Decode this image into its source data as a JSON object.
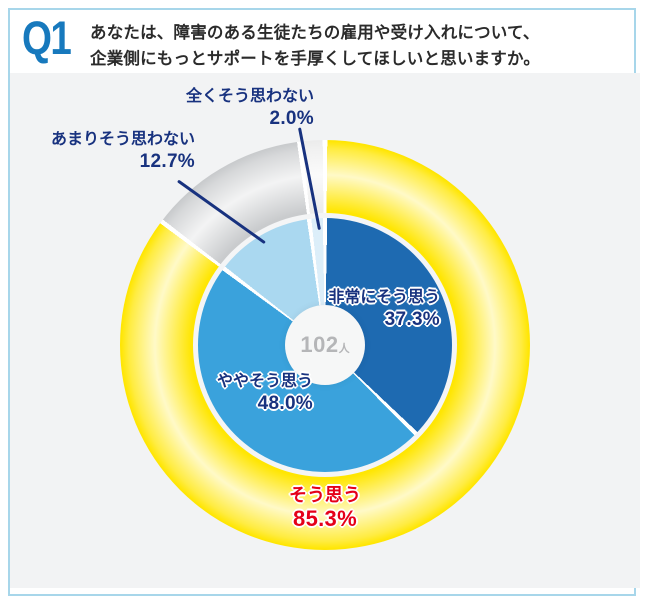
{
  "header": {
    "badge": "Q1",
    "question_line1": "あなたは、障害のある生徒たちの雇用や受け入れについて、",
    "question_line2": "企業側にもっとサポートを手厚くしてほしいと思いますか。"
  },
  "chart_data": {
    "type": "pie",
    "title": "あなたは、障害のある生徒たちの雇用や受け入れについて、企業側にもっとサポートを手厚くしてほしいと思いますか。",
    "sample_n": "102",
    "sample_unit": "人",
    "start_angle_deg": 0,
    "direction": "clockwise",
    "slices": [
      {
        "label": "非常にそう思う",
        "value": 37.3,
        "pct_text": "37.3%",
        "color": "#1e6ab1"
      },
      {
        "label": "ややそう思う",
        "value": 48.0,
        "pct_text": "48.0%",
        "color": "#3aa2dc"
      },
      {
        "label": "あまりそう思わない",
        "value": 12.7,
        "pct_text": "12.7%",
        "color": "#aad8f0"
      },
      {
        "label": "全くそう思わない",
        "value": 2.0,
        "pct_text": "2.0%",
        "color": "#dceef9"
      }
    ],
    "outer_ring": [
      {
        "label": "そう思う",
        "value": 85.3,
        "pct_text": "85.3%",
        "color": "#ffe603"
      },
      {
        "label": "あまりそう思わない",
        "value": 12.7,
        "pct_text": "12.7%",
        "color": "#c9cbcd"
      },
      {
        "label": "全くそう思わない",
        "value": 2.0,
        "pct_text": "2.0%",
        "color": "#ececec"
      }
    ],
    "legend_position": "callouts"
  },
  "colors": {
    "navy_label": "#18327f",
    "red_label": "#e50019",
    "q_badge_blue": "#1779bd",
    "card_border": "#a7d6ea",
    "panel_bg": "#f2f3f4"
  }
}
